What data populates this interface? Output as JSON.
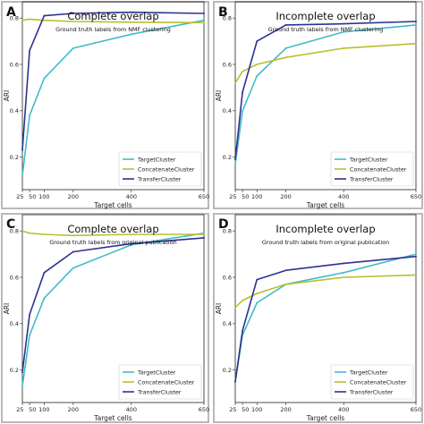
{
  "chart_data": [
    {
      "panel": "A",
      "type": "line",
      "title": "Complete overlap",
      "subtitle": "Ground truth labels from NMF clustering",
      "xlabel": "Target cells",
      "ylabel": "ARI",
      "x_ticks": [
        "25",
        "50",
        "100",
        "200",
        "400",
        "650"
      ],
      "y_ticks": [
        "0.2",
        "0.4",
        "0.6",
        "0.8"
      ],
      "xlim": [
        25,
        650
      ],
      "ylim": [
        0.06,
        0.87
      ],
      "grid": false,
      "legend_position": "lower-right",
      "x": [
        25,
        50,
        100,
        200,
        400,
        650
      ],
      "series": [
        {
          "name": "TargetCluster",
          "color": "#3fbcc9",
          "values": [
            0.12,
            0.38,
            0.54,
            0.67,
            0.73,
            0.79
          ]
        },
        {
          "name": "ConcatenateCluster",
          "color": "#b9bf2e",
          "values": [
            0.79,
            0.795,
            0.79,
            0.785,
            0.782,
            0.78
          ]
        },
        {
          "name": "TransferCluster",
          "color": "#2e3190",
          "values": [
            0.23,
            0.66,
            0.81,
            0.82,
            0.825,
            0.82
          ]
        }
      ]
    },
    {
      "panel": "B",
      "type": "line",
      "title": "Incomplete overlap",
      "subtitle": "Ground truth labels from NMF clustering",
      "xlabel": "Target cells",
      "ylabel": "ARI",
      "x_ticks": [
        "25",
        "50",
        "100",
        "200",
        "400",
        "650"
      ],
      "y_ticks": [
        "0.2",
        "0.4",
        "0.6",
        "0.8"
      ],
      "xlim": [
        25,
        650
      ],
      "ylim": [
        0.06,
        0.87
      ],
      "grid": false,
      "legend_position": "lower-right",
      "x": [
        25,
        50,
        100,
        200,
        400,
        650
      ],
      "series": [
        {
          "name": "TargetCluster",
          "color": "#3fbcc9",
          "values": [
            0.17,
            0.4,
            0.55,
            0.67,
            0.74,
            0.77
          ]
        },
        {
          "name": "ConcatenateCluster",
          "color": "#b9bf2e",
          "values": [
            0.52,
            0.57,
            0.6,
            0.63,
            0.67,
            0.69
          ]
        },
        {
          "name": "TransferCluster",
          "color": "#2e3190",
          "values": [
            0.19,
            0.48,
            0.7,
            0.77,
            0.775,
            0.785
          ]
        }
      ]
    },
    {
      "panel": "C",
      "type": "line",
      "title": "Complete overlap",
      "subtitle": "Ground truth labels from original publication",
      "xlabel": "Target cells",
      "ylabel": "ARI",
      "x_ticks": [
        "25",
        "50",
        "100",
        "200",
        "400",
        "650"
      ],
      "y_ticks": [
        "0.2",
        "0.4",
        "0.6",
        "0.8"
      ],
      "xlim": [
        25,
        650
      ],
      "ylim": [
        0.06,
        0.87
      ],
      "grid": false,
      "legend_position": "lower-right",
      "x": [
        25,
        50,
        100,
        200,
        400,
        650
      ],
      "series": [
        {
          "name": "TargetCluster",
          "color": "#3fbcc9",
          "values": [
            0.13,
            0.35,
            0.51,
            0.64,
            0.74,
            0.79
          ]
        },
        {
          "name": "ConcatenateCluster",
          "color": "#b9bf2e",
          "values": [
            0.8,
            0.79,
            0.785,
            0.78,
            0.785,
            0.785
          ]
        },
        {
          "name": "TransferCluster",
          "color": "#2e3190",
          "values": [
            0.19,
            0.44,
            0.62,
            0.71,
            0.745,
            0.77
          ]
        }
      ]
    },
    {
      "panel": "D",
      "type": "line",
      "title": "Incomplete overlap",
      "subtitle": "Ground truth labels from original publication",
      "xlabel": "Target cells",
      "ylabel": "ARI",
      "x_ticks": [
        "25",
        "50",
        "100",
        "200",
        "400",
        "650"
      ],
      "y_ticks": [
        "0.2",
        "0.4",
        "0.6",
        "0.8"
      ],
      "xlim": [
        25,
        650
      ],
      "ylim": [
        0.06,
        0.87
      ],
      "grid": false,
      "legend_position": "lower-right",
      "x": [
        25,
        50,
        100,
        200,
        400,
        650
      ],
      "series": [
        {
          "name": "TargetCluster",
          "color": "#3fbcc9",
          "values": [
            0.15,
            0.35,
            0.49,
            0.57,
            0.62,
            0.7
          ]
        },
        {
          "name": "ConcatenateCluster",
          "color": "#b9bf2e",
          "values": [
            0.47,
            0.5,
            0.53,
            0.57,
            0.6,
            0.61
          ]
        },
        {
          "name": "TransferCluster",
          "color": "#2e3190",
          "values": [
            0.15,
            0.37,
            0.59,
            0.63,
            0.66,
            0.69
          ]
        }
      ]
    }
  ]
}
